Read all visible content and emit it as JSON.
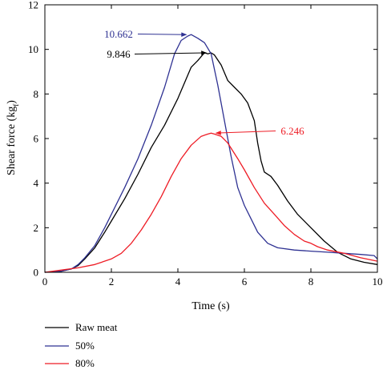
{
  "chart_data": {
    "type": "line",
    "xlabel": "Time (s)",
    "ylabel_main": "Shear force (kg",
    "ylabel_sub": "f",
    "ylabel_close": ")",
    "xlim": [
      0,
      10
    ],
    "ylim": [
      0,
      12
    ],
    "xticks": [
      0,
      2,
      4,
      6,
      8,
      10
    ],
    "yticks": [
      0,
      2,
      4,
      6,
      8,
      10,
      12
    ],
    "grid": false,
    "legend_position": "bottom-left",
    "series": [
      {
        "name": "Raw meat",
        "color": "#000000",
        "x": [
          0,
          0.5,
          0.8,
          1.0,
          1.2,
          1.5,
          1.8,
          2.0,
          2.4,
          2.8,
          3.2,
          3.6,
          4.0,
          4.2,
          4.4,
          4.6,
          4.8,
          4.9,
          5.0,
          5.1,
          5.3,
          5.5,
          5.7,
          5.9,
          6.1,
          6.3,
          6.4,
          6.5,
          6.6,
          6.8,
          7.0,
          7.3,
          7.6,
          8.0,
          8.4,
          8.8,
          9.2,
          9.6,
          10.0
        ],
        "y": [
          0,
          0.05,
          0.15,
          0.3,
          0.6,
          1.1,
          1.8,
          2.3,
          3.3,
          4.4,
          5.6,
          6.6,
          7.8,
          8.5,
          9.2,
          9.5,
          9.85,
          9.8,
          9.846,
          9.75,
          9.3,
          8.6,
          8.3,
          8.0,
          7.6,
          6.8,
          5.8,
          5.0,
          4.5,
          4.3,
          3.9,
          3.2,
          2.6,
          2.0,
          1.4,
          0.9,
          0.6,
          0.45,
          0.35
        ]
      },
      {
        "name": "50%",
        "color": "#2e3192",
        "x": [
          0,
          0.5,
          0.8,
          1.0,
          1.2,
          1.5,
          1.8,
          2.0,
          2.4,
          2.8,
          3.2,
          3.6,
          3.9,
          4.1,
          4.3,
          4.4,
          4.6,
          4.8,
          5.0,
          5.2,
          5.4,
          5.6,
          5.8,
          6.0,
          6.2,
          6.4,
          6.7,
          7.0,
          7.5,
          8.0,
          8.5,
          9.0,
          9.5,
          9.9,
          10.0
        ],
        "y": [
          0,
          0.05,
          0.15,
          0.35,
          0.65,
          1.2,
          2.0,
          2.6,
          3.8,
          5.1,
          6.6,
          8.3,
          9.8,
          10.4,
          10.6,
          10.662,
          10.5,
          10.3,
          9.8,
          8.4,
          6.8,
          5.2,
          3.8,
          3.0,
          2.4,
          1.8,
          1.3,
          1.1,
          1.0,
          0.95,
          0.9,
          0.85,
          0.8,
          0.75,
          0.6
        ]
      },
      {
        "name": "80%",
        "color": "#ee1c25",
        "x": [
          0,
          0.5,
          1.0,
          1.5,
          2.0,
          2.3,
          2.6,
          2.9,
          3.2,
          3.5,
          3.8,
          4.1,
          4.4,
          4.7,
          4.9,
          5.0,
          5.1,
          5.3,
          5.5,
          5.8,
          6.0,
          6.3,
          6.6,
          6.9,
          7.2,
          7.5,
          7.8,
          8.0,
          8.2,
          8.5,
          9.0,
          9.5,
          10.0
        ],
        "y": [
          0,
          0.1,
          0.2,
          0.35,
          0.6,
          0.85,
          1.3,
          1.9,
          2.6,
          3.4,
          4.3,
          5.1,
          5.7,
          6.1,
          6.2,
          6.246,
          6.2,
          6.1,
          5.8,
          5.1,
          4.6,
          3.8,
          3.1,
          2.6,
          2.1,
          1.7,
          1.4,
          1.3,
          1.15,
          1.0,
          0.85,
          0.65,
          0.5
        ]
      }
    ],
    "annotations": [
      {
        "text": "10.662",
        "color": "#2e3192",
        "x": 4.4,
        "y": 10.662
      },
      {
        "text": "9.846",
        "color": "#000000",
        "x": 5.0,
        "y": 9.846
      },
      {
        "text": "6.246",
        "color": "#ee1c25",
        "x": 5.0,
        "y": 6.246
      }
    ]
  }
}
